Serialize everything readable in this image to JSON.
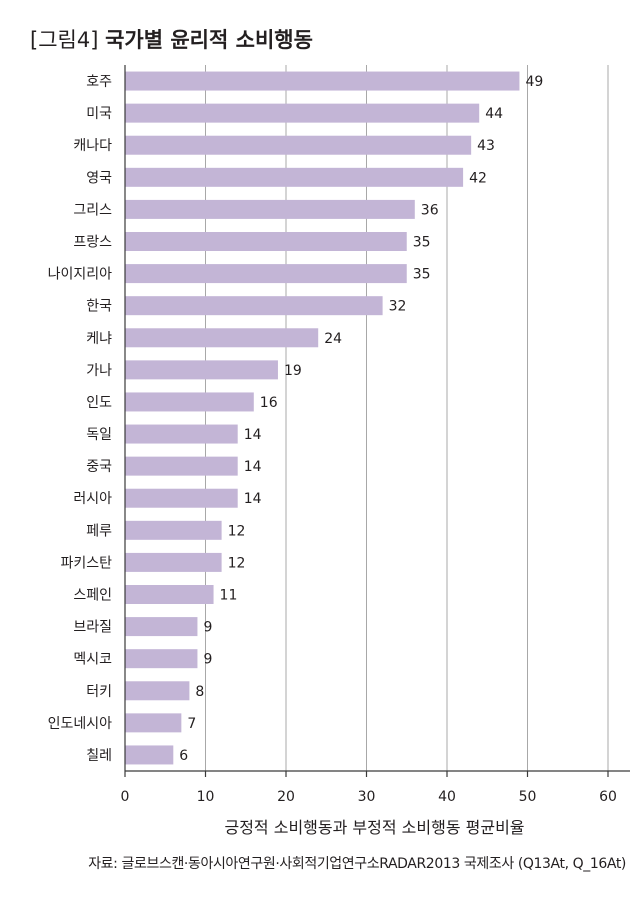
{
  "title_tag": "[그림4]",
  "title_main": "국가별 윤리적 소비행동",
  "source": "자료: 글로브스캔·동아시아연구원·사회적기업연구소RADAR2013 국제조사 (Q13At, Q_16At)",
  "colors": {
    "bar": "#c3b5d6",
    "grid": "#a8a8a8",
    "axis": "#3a3a3a",
    "text": "#231f20"
  },
  "chart_data": {
    "type": "bar",
    "orientation": "horizontal",
    "title": "[그림4] 국가별 윤리적 소비행동",
    "xlabel": "긍정적 소비행동과 부정적 소비행동 평균비율",
    "ylabel": "",
    "xlim": [
      0,
      60
    ],
    "xticks": [
      0,
      10,
      20,
      30,
      40,
      50,
      60
    ],
    "grid": true,
    "categories": [
      "호주",
      "미국",
      "캐나다",
      "영국",
      "그리스",
      "프랑스",
      "나이지리아",
      "한국",
      "케냐",
      "가나",
      "인도",
      "독일",
      "중국",
      "러시아",
      "페루",
      "파키스탄",
      "스페인",
      "브라질",
      "멕시코",
      "터키",
      "인도네시아",
      "칠레"
    ],
    "values": [
      49,
      44,
      43,
      42,
      36,
      35,
      35,
      32,
      24,
      19,
      16,
      14,
      14,
      14,
      12,
      12,
      11,
      9,
      9,
      8,
      7,
      6
    ]
  }
}
